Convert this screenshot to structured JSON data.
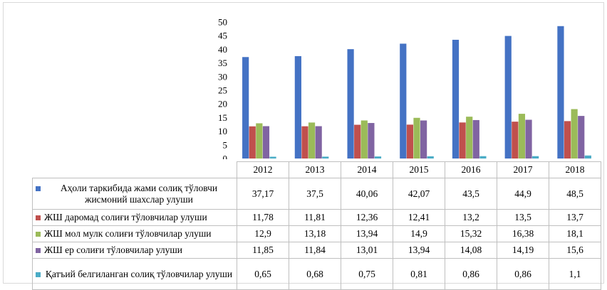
{
  "chart_data": {
    "type": "bar",
    "categories": [
      "2012",
      "2013",
      "2014",
      "2015",
      "2016",
      "2017",
      "2018"
    ],
    "series": [
      {
        "name": "Аҳоли таркибида жами солиқ тўловчи жисмоний шахслар улуши",
        "color": "#4472C4",
        "values": [
          37.17,
          37.5,
          40.06,
          42.07,
          43.5,
          44.9,
          48.5
        ],
        "labels": [
          "37,17",
          "37,5",
          "40,06",
          "42,07",
          "43,5",
          "44,9",
          "48,5"
        ]
      },
      {
        "name": "ЖШ даромад солиғи тўловчилар улуши",
        "color": "#C0504D",
        "values": [
          11.78,
          11.81,
          12.36,
          12.41,
          13.2,
          13.5,
          13.7
        ],
        "labels": [
          "11,78",
          "11,81",
          "12,36",
          "12,41",
          "13,2",
          "13,5",
          "13,7"
        ]
      },
      {
        "name": "ЖШ мол мулк солиғи тўловчилар улуши",
        "color": "#9BBB59",
        "values": [
          12.9,
          13.18,
          13.94,
          14.9,
          15.32,
          16.38,
          18.1
        ],
        "labels": [
          "12,9",
          "13,18",
          "13,94",
          "14,9",
          "15,32",
          "16,38",
          "18,1"
        ]
      },
      {
        "name": "ЖШ ер солиғи тўловчилар улуши",
        "color": "#8064A2",
        "values": [
          11.85,
          11.84,
          13.01,
          13.94,
          14.08,
          14.19,
          15.6
        ],
        "labels": [
          "11,85",
          "11,84",
          "13,01",
          "13,94",
          "14,08",
          "14,19",
          "15,6"
        ]
      },
      {
        "name": "Қатъий белгиланган солиқ тўловчилар улуши",
        "color": "#4BACC6",
        "values": [
          0.65,
          0.68,
          0.75,
          0.81,
          0.86,
          0.86,
          1.1
        ],
        "labels": [
          "0,65",
          "0,68",
          "0,75",
          "0,81",
          "0,86",
          "0,86",
          "1,1"
        ]
      }
    ],
    "yticks": [
      "0",
      "5",
      "10",
      "15",
      "20",
      "25",
      "30",
      "35",
      "40",
      "45",
      "50"
    ],
    "ylim": [
      0,
      50
    ],
    "legend": "data-table",
    "grid": false
  }
}
